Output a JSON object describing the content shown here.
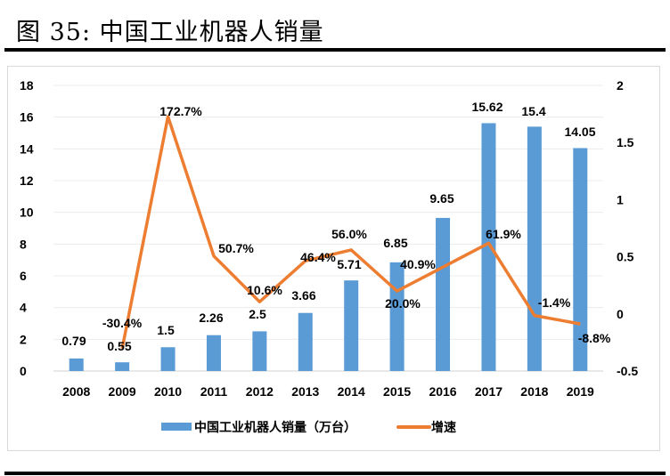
{
  "title": "图 35: 中国工业机器人销量",
  "chart_data": {
    "type": "bar+line",
    "title": "图 35: 中国工业机器人销量",
    "categories": [
      "2008",
      "2009",
      "2010",
      "2011",
      "2012",
      "2013",
      "2014",
      "2015",
      "2016",
      "2017",
      "2018",
      "2019"
    ],
    "series": [
      {
        "name": "中国工业机器人销量（万台）",
        "type": "bar",
        "axis": "left",
        "color": "#5b9bd5",
        "values": [
          0.79,
          0.55,
          1.5,
          2.26,
          2.5,
          3.66,
          5.71,
          6.85,
          9.65,
          15.62,
          15.4,
          14.05
        ],
        "labels": [
          "0.79",
          "0.55",
          "1.5",
          "2.26",
          "2.5",
          "3.66",
          "5.71",
          "6.85",
          "9.65",
          "15.62",
          "15.4",
          "14.05"
        ]
      },
      {
        "name": "增速",
        "type": "line",
        "axis": "right",
        "color": "#ed7d31",
        "values": [
          null,
          -0.304,
          1.727,
          0.507,
          0.106,
          0.464,
          0.56,
          0.2,
          0.409,
          0.619,
          -0.014,
          -0.088
        ],
        "labels": [
          "",
          "-30.4%",
          "172.7%",
          "50.7%",
          "10.6%",
          "46.4%",
          "56.0%",
          "20.0%",
          "40.9%",
          "61.9%",
          "-1.4%",
          "-8.8%"
        ]
      }
    ],
    "y_left": {
      "range": [
        0,
        18
      ],
      "ticks": [
        "0",
        "2",
        "4",
        "6",
        "8",
        "10",
        "12",
        "14",
        "16",
        "18"
      ]
    },
    "y_right": {
      "range": [
        -0.5,
        2
      ],
      "ticks": [
        "-0.5",
        "0",
        "0.5",
        "1",
        "1.5",
        "2"
      ]
    },
    "legend": "bottom",
    "grid": true
  }
}
